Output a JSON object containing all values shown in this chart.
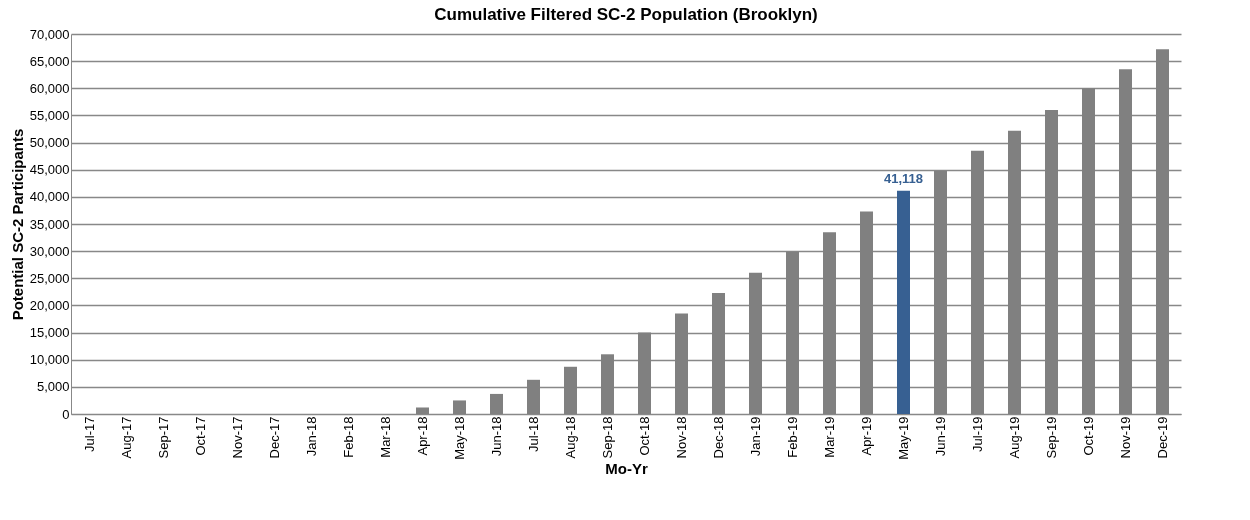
{
  "chart_data": {
    "type": "bar",
    "title": "Cumulative Filtered SC-2 Population (Brooklyn)",
    "xlabel": "Mo-Yr",
    "ylabel": "Potential SC-2 Participants",
    "categories": [
      "Jul-17",
      "Aug-17",
      "Sep-17",
      "Oct-17",
      "Nov-17",
      "Dec-17",
      "Jan-18",
      "Feb-18",
      "Mar-18",
      "Apr-18",
      "May-18",
      "Jun-18",
      "Jul-18",
      "Aug-18",
      "Sep-18",
      "Oct-18",
      "Nov-18",
      "Dec-18",
      "Jan-19",
      "Feb-19",
      "Mar-19",
      "Apr-19",
      "May-19",
      "Jun-19",
      "Jul-19",
      "Aug-19",
      "Sep-19",
      "Oct-19",
      "Nov-19",
      "Dec-19"
    ],
    "values": [
      0,
      0,
      0,
      0,
      0,
      0,
      0,
      0,
      0,
      1200,
      2500,
      3700,
      6300,
      8700,
      11000,
      15000,
      18500,
      22300,
      26000,
      29900,
      33500,
      37300,
      41118,
      44800,
      48500,
      52200,
      56000,
      60000,
      63500,
      67200
    ],
    "colors": [
      "#808080",
      "#808080",
      "#808080",
      "#808080",
      "#808080",
      "#808080",
      "#808080",
      "#808080",
      "#808080",
      "#808080",
      "#808080",
      "#808080",
      "#808080",
      "#808080",
      "#808080",
      "#808080",
      "#808080",
      "#808080",
      "#808080",
      "#808080",
      "#808080",
      "#808080",
      "#376092",
      "#808080",
      "#808080",
      "#808080",
      "#808080",
      "#808080",
      "#808080",
      "#808080"
    ],
    "value_labels": [
      null,
      null,
      null,
      null,
      null,
      null,
      null,
      null,
      null,
      null,
      null,
      null,
      null,
      null,
      null,
      null,
      null,
      null,
      null,
      null,
      null,
      null,
      "41,118",
      null,
      null,
      null,
      null,
      null,
      null,
      null
    ],
    "ylim": [
      0,
      70000
    ],
    "yticks": [
      0,
      {
        "value": 5000,
        "label": "5,000"
      },
      {
        "value": 10000,
        "label": "10,000"
      },
      {
        "value": 15000,
        "label": "15,000"
      },
      {
        "value": 20000,
        "label": "20,000"
      },
      {
        "value": 25000,
        "label": "25,000"
      },
      {
        "value": 30000,
        "label": "30,000"
      },
      {
        "value": 35000,
        "label": "35,000"
      },
      {
        "value": 40000,
        "label": "40,000"
      },
      {
        "value": 45000,
        "label": "45,000"
      },
      {
        "value": 50000,
        "label": "50,000"
      },
      {
        "value": 55000,
        "label": "55,000"
      },
      {
        "value": 60000,
        "label": "60,000"
      },
      {
        "value": 65000,
        "label": "65,000"
      },
      {
        "value": 70000,
        "label": "70,000"
      }
    ],
    "grid": "y"
  }
}
